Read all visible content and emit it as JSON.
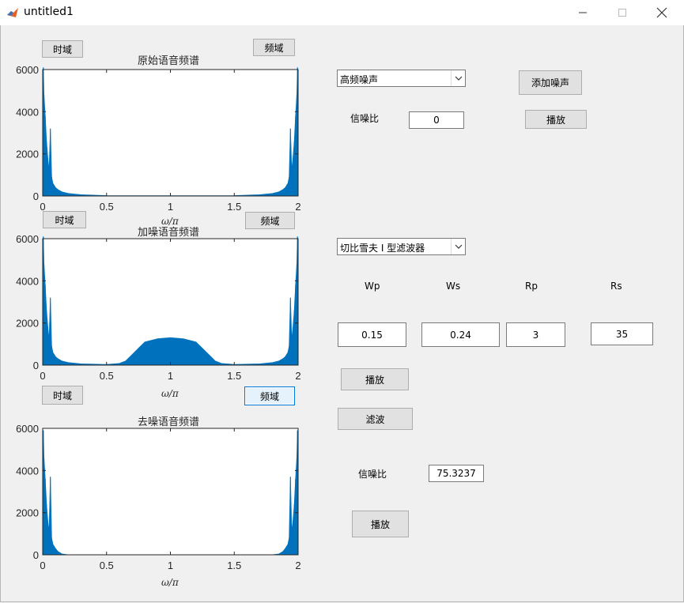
{
  "window": {
    "title": "untitled1"
  },
  "controls": {
    "time_btn_1": "时域",
    "freq_btn_1": "频域",
    "time_btn_2": "时域",
    "freq_btn_2": "频域",
    "time_btn_3": "时域",
    "freq_btn_3": "频域",
    "noise_type": "高频噪声",
    "add_noise": "添加噪声",
    "snr_label": "信噪比",
    "snr_value": "0",
    "play_1": "播放",
    "filter_type": "切比雪夫 I 型滤波器",
    "wp_label": "Wp",
    "ws_label": "Ws",
    "rp_label": "Rp",
    "rs_label": "Rs",
    "wp_value": "0.15",
    "ws_value": "0.24",
    "rp_value": "3",
    "rs_value": "35",
    "play_2": "播放",
    "filter_btn": "滤波",
    "snr2_label": "信噪比",
    "snr2_value": "75.3237",
    "play_3": "播放"
  },
  "chart_data": [
    {
      "type": "area",
      "title": "原始语音频谱",
      "xlabel": "ω/π",
      "xlim": [
        0,
        2
      ],
      "ylim": [
        0,
        6000
      ],
      "xticks": [
        "0",
        "0.5",
        "1",
        "1.5",
        "2"
      ],
      "yticks": [
        "0",
        "2000",
        "4000",
        "6000"
      ],
      "color": "#0072bd",
      "x": [
        0,
        0.005,
        0.01,
        0.02,
        0.03,
        0.04,
        0.05,
        0.06,
        0.07,
        0.08,
        0.1,
        0.12,
        0.15,
        0.2,
        0.3,
        0.5,
        1.0,
        1.5,
        1.7,
        1.8,
        1.85,
        1.88,
        1.9,
        1.92,
        1.93,
        1.94,
        1.95,
        1.96,
        1.97,
        1.98,
        1.99,
        1.995,
        2.0
      ],
      "values": [
        5900,
        6100,
        4800,
        3800,
        2600,
        1800,
        1200,
        3200,
        900,
        600,
        400,
        300,
        200,
        120,
        60,
        20,
        10,
        20,
        60,
        120,
        200,
        300,
        400,
        600,
        900,
        3200,
        1200,
        1800,
        2600,
        3800,
        4800,
        6100,
        5900
      ]
    },
    {
      "type": "area",
      "title": "加噪语音频谱",
      "xlabel": "ω/π",
      "xlim": [
        0,
        2
      ],
      "ylim": [
        0,
        6000
      ],
      "xticks": [
        "0",
        "0.5",
        "1",
        "1.5",
        "2"
      ],
      "yticks": [
        "0",
        "2000",
        "4000",
        "6000"
      ],
      "color": "#0072bd",
      "x": [
        0,
        0.005,
        0.01,
        0.02,
        0.03,
        0.04,
        0.05,
        0.06,
        0.07,
        0.08,
        0.1,
        0.12,
        0.15,
        0.2,
        0.3,
        0.5,
        0.6,
        0.65,
        0.7,
        0.75,
        0.8,
        0.9,
        1.0,
        1.1,
        1.2,
        1.25,
        1.3,
        1.35,
        1.4,
        1.5,
        1.7,
        1.8,
        1.85,
        1.88,
        1.9,
        1.92,
        1.93,
        1.94,
        1.95,
        1.96,
        1.97,
        1.98,
        1.99,
        1.995,
        2.0
      ],
      "values": [
        5900,
        6100,
        4800,
        3800,
        2600,
        1800,
        1200,
        3200,
        900,
        600,
        400,
        300,
        200,
        120,
        60,
        30,
        80,
        200,
        500,
        800,
        1100,
        1250,
        1300,
        1250,
        1100,
        800,
        500,
        200,
        80,
        30,
        60,
        120,
        200,
        300,
        400,
        600,
        900,
        3200,
        1200,
        1800,
        2600,
        3800,
        4800,
        6100,
        5900
      ]
    },
    {
      "type": "area",
      "title": "去噪语音频谱",
      "xlabel": "ω/π",
      "xlim": [
        0,
        2
      ],
      "ylim": [
        0,
        6000
      ],
      "xticks": [
        "0",
        "0.5",
        "1",
        "1.5",
        "2"
      ],
      "yticks": [
        "0",
        "2000",
        "4000",
        "6000"
      ],
      "color": "#0072bd",
      "x": [
        0,
        0.005,
        0.01,
        0.02,
        0.03,
        0.04,
        0.05,
        0.06,
        0.07,
        0.08,
        0.1,
        0.12,
        0.15,
        0.2,
        0.5,
        1.0,
        1.5,
        1.8,
        1.85,
        1.88,
        1.9,
        1.92,
        1.93,
        1.94,
        1.95,
        1.96,
        1.97,
        1.98,
        1.99,
        1.995,
        2.0
      ],
      "values": [
        5700,
        5900,
        4600,
        3600,
        2400,
        1600,
        1100,
        3700,
        800,
        500,
        300,
        150,
        40,
        0,
        0,
        0,
        0,
        0,
        40,
        150,
        300,
        500,
        800,
        3700,
        1100,
        1600,
        2400,
        3600,
        4600,
        5900,
        5700
      ]
    }
  ]
}
